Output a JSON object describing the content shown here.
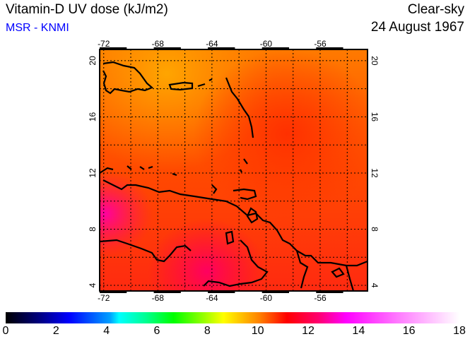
{
  "header": {
    "title": "Vitamin-D UV dose (kJ/m2)",
    "source": "MSR - KNMI",
    "mode": "Clear-sky",
    "date": "24 August 1967"
  },
  "map": {
    "lon_ticks": [
      "-72",
      "-68",
      "-64",
      "-60",
      "-56"
    ],
    "lat_ticks": [
      "20",
      "16",
      "12",
      "8",
      "4"
    ],
    "lon_range": [
      -72.3,
      -52.5
    ],
    "lat_range": [
      3.6,
      20.8
    ]
  },
  "colorbar": {
    "labels": [
      "0",
      "2",
      "4",
      "6",
      "8",
      "10",
      "12",
      "14",
      "16",
      "18"
    ],
    "min": 0,
    "max": 18
  }
}
